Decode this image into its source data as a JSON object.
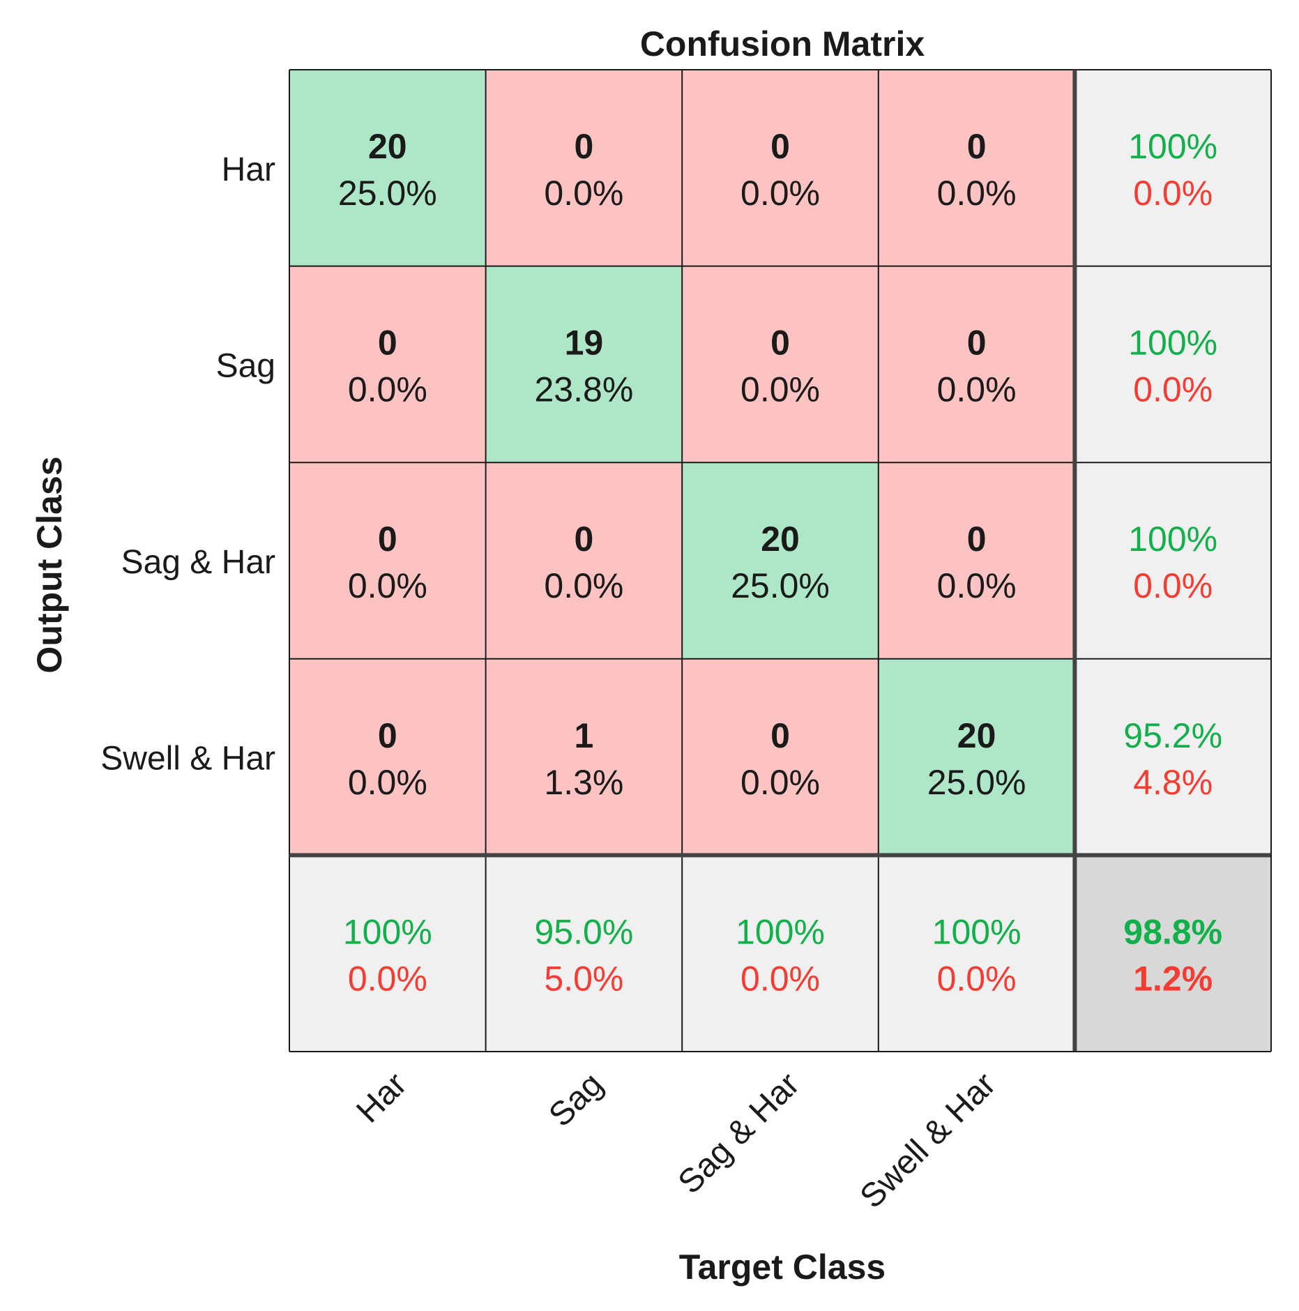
{
  "chart_data": {
    "type": "heatmap",
    "title": "Confusion Matrix",
    "xlabel": "Target Class",
    "ylabel": "Output Class",
    "target_classes": [
      "Har",
      "Sag",
      "Sag & Har",
      "Swell & Har"
    ],
    "output_classes": [
      "Har",
      "Sag",
      "Sag & Har",
      "Swell & Har"
    ],
    "counts": [
      [
        20,
        0,
        0,
        0
      ],
      [
        0,
        19,
        0,
        0
      ],
      [
        0,
        0,
        20,
        0
      ],
      [
        0,
        1,
        0,
        20
      ]
    ],
    "percents": [
      [
        "25.0%",
        "0.0%",
        "0.0%",
        "0.0%"
      ],
      [
        "0.0%",
        "23.8%",
        "0.0%",
        "0.0%"
      ],
      [
        "0.0%",
        "0.0%",
        "25.0%",
        "0.0%"
      ],
      [
        "0.0%",
        "1.3%",
        "0.0%",
        "25.0%"
      ]
    ],
    "row_summary": [
      {
        "correct": "100%",
        "error": "0.0%"
      },
      {
        "correct": "100%",
        "error": "0.0%"
      },
      {
        "correct": "100%",
        "error": "0.0%"
      },
      {
        "correct": "95.2%",
        "error": "4.8%"
      }
    ],
    "column_summary": [
      {
        "correct": "100%",
        "error": "0.0%"
      },
      {
        "correct": "95.0%",
        "error": "5.0%"
      },
      {
        "correct": "100%",
        "error": "0.0%"
      },
      {
        "correct": "100%",
        "error": "0.0%"
      }
    ],
    "overall": {
      "correct": "98.8%",
      "error": "1.2%"
    },
    "colors": {
      "diagonal": "#ade7c8",
      "off_diagonal": "#fdc2c2",
      "summary": "#f0f0f0",
      "overall": "#d8d8d8",
      "correct_text": "#11b04a",
      "error_text": "#f53c32",
      "grid": "#1a1a1a"
    }
  }
}
